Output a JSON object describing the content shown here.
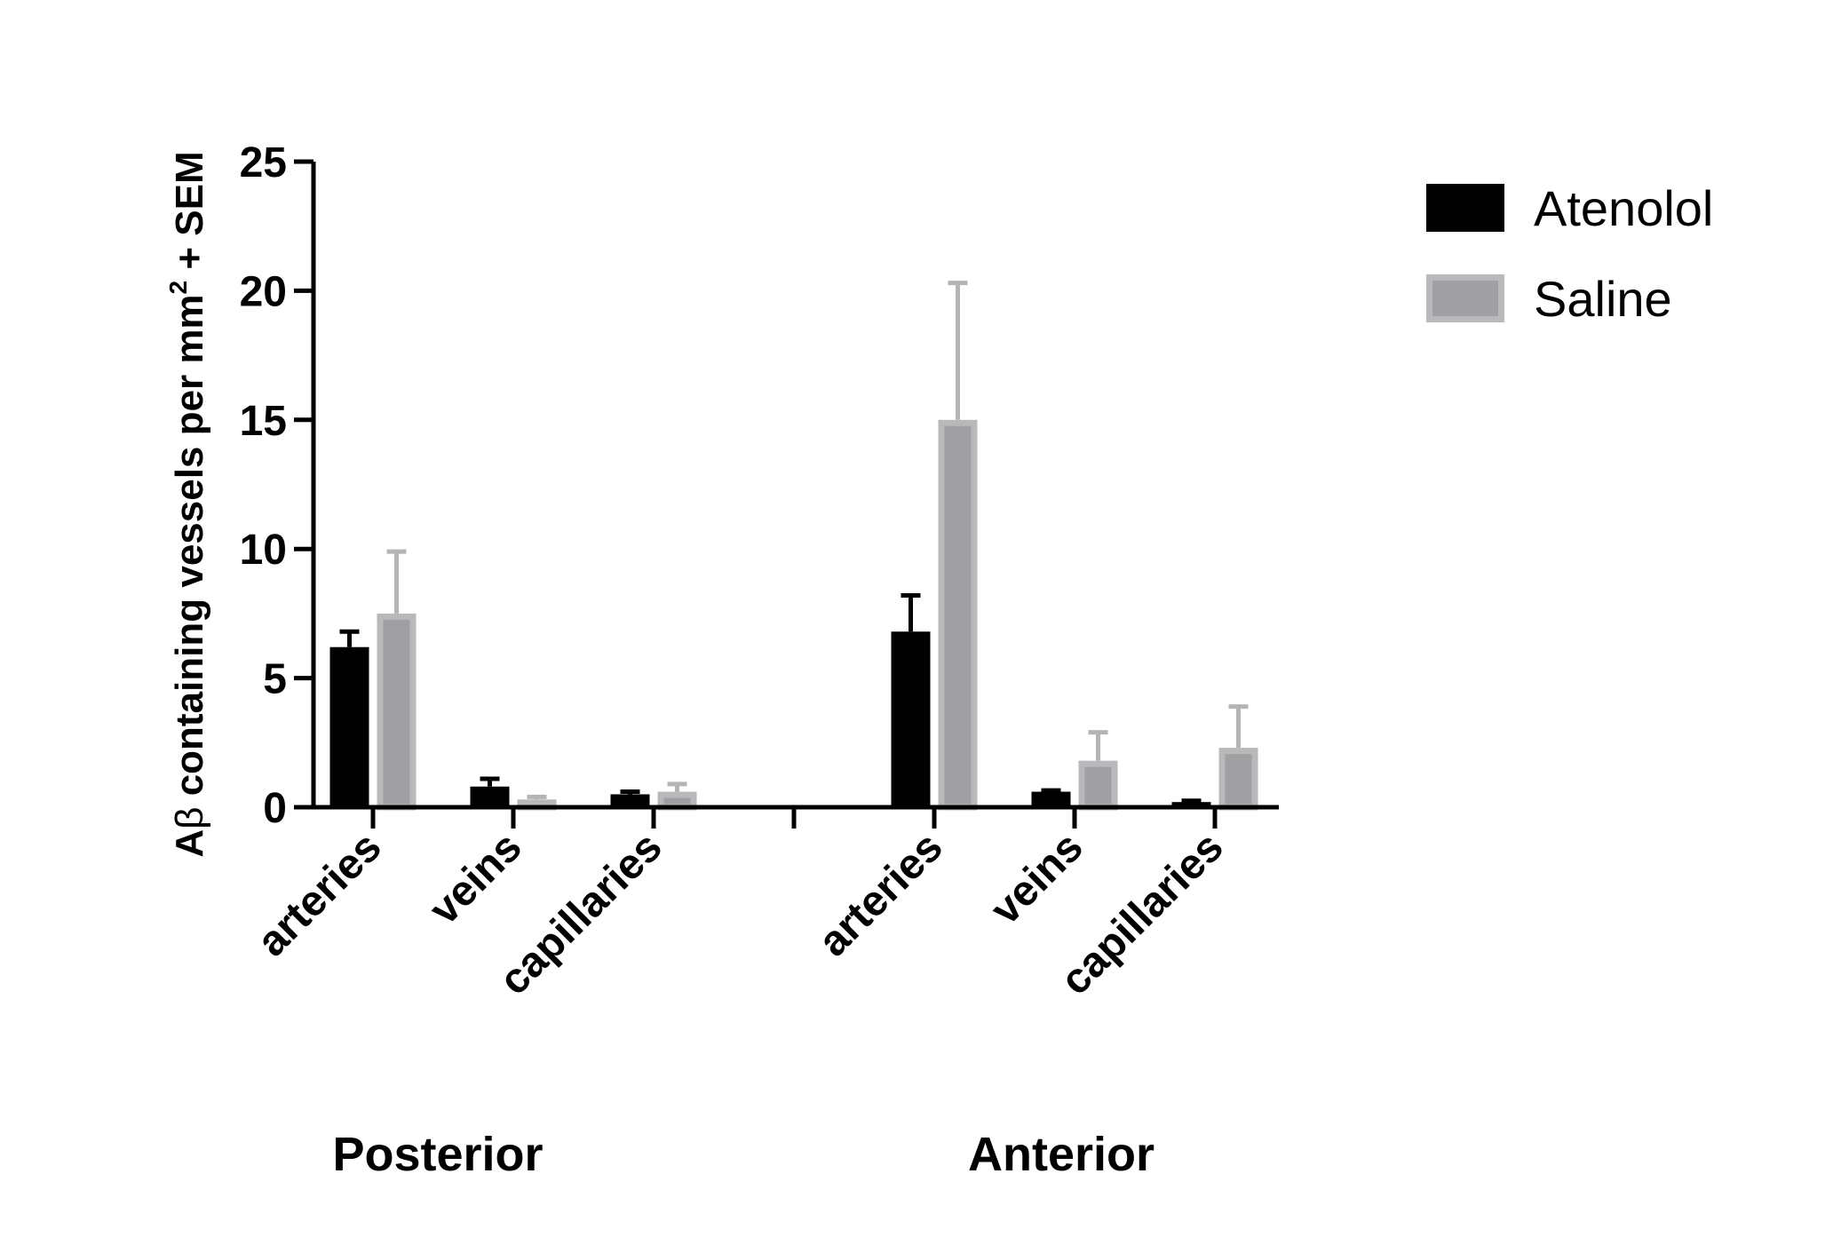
{
  "chart_data": {
    "type": "bar",
    "ylabel_prefix": "A",
    "ylabel_beta": "β",
    "ylabel_main": " containing vessels per mm",
    "ylabel_sup": "2",
    "ylabel_suffix": " + SEM",
    "ylim": [
      0,
      25
    ],
    "yticks": [
      "0",
      "5",
      "10",
      "15",
      "20",
      "25"
    ],
    "groups": [
      {
        "name": "Posterior",
        "categories": [
          "arteries",
          "veins",
          "capillaries"
        ]
      },
      {
        "name": "Anterior",
        "categories": [
          "arteries",
          "veins",
          "capillaries"
        ]
      }
    ],
    "series": [
      {
        "name": "Atenolol",
        "color": "#000000",
        "values": [
          6.2,
          0.8,
          0.5,
          6.8,
          0.6,
          0.2
        ],
        "errors": [
          0.6,
          0.3,
          0.1,
          1.4,
          0.05,
          0.05
        ]
      },
      {
        "name": "Saline",
        "color": "#a6a6a8",
        "values": [
          7.5,
          0.3,
          0.6,
          15.0,
          1.8,
          2.3
        ],
        "errors": [
          2.4,
          0.1,
          0.3,
          5.3,
          1.1,
          1.6
        ]
      }
    ],
    "legend_position": "top-right",
    "grid": false
  }
}
